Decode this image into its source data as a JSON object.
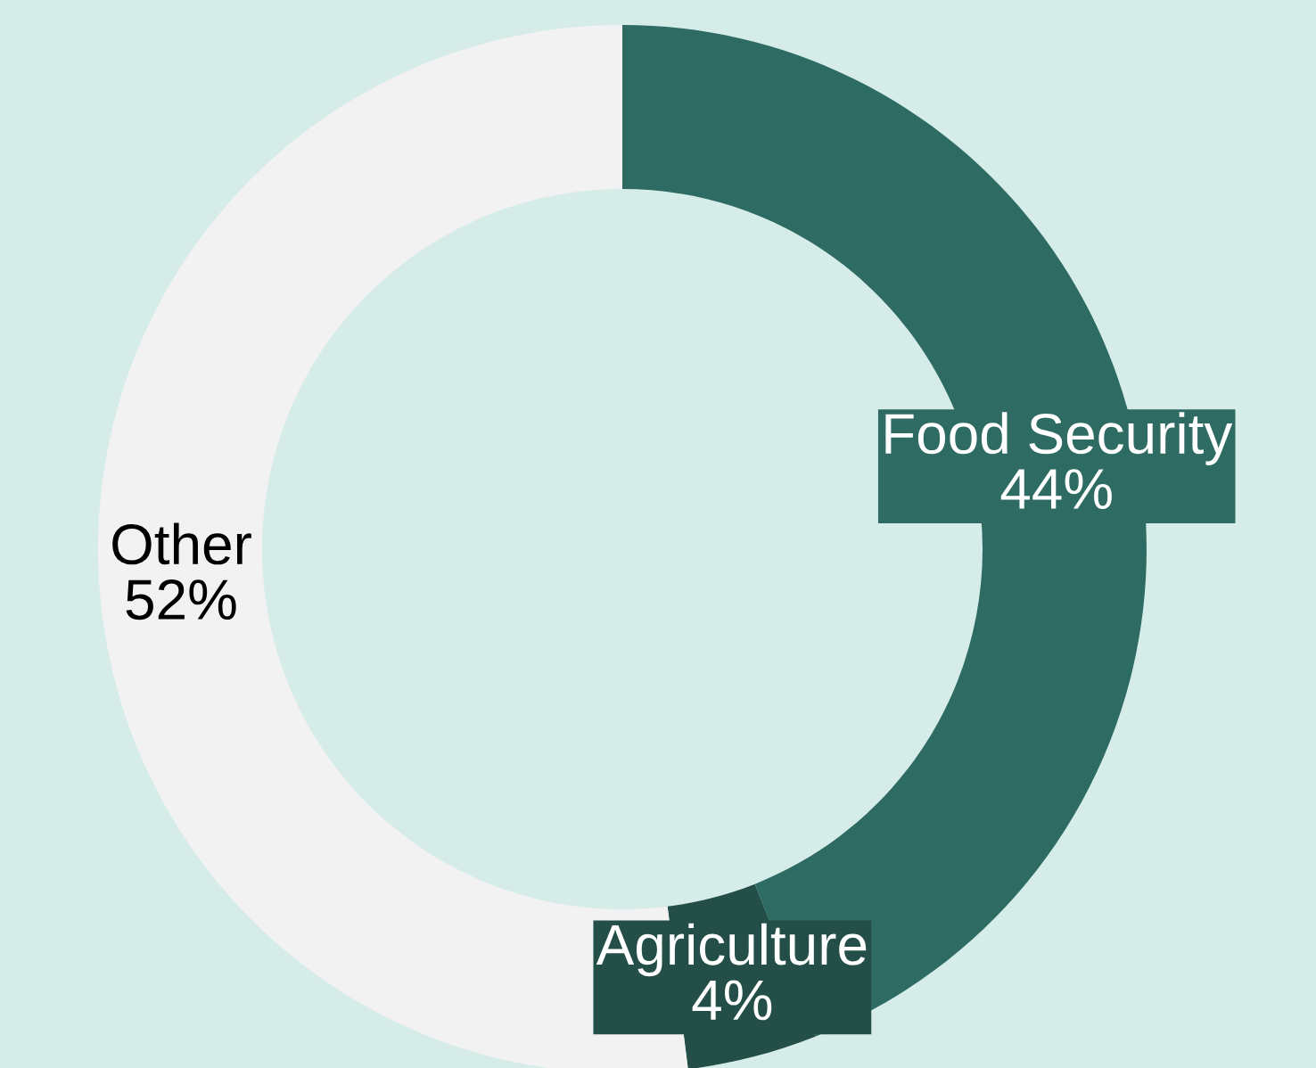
{
  "chart_data": {
    "type": "donut",
    "categories": [
      "Food Security",
      "Agriculture",
      "Other"
    ],
    "values": [
      44,
      4,
      52
    ],
    "colors": [
      "#2e6b63",
      "#234f48",
      "#f2f2f2"
    ],
    "value_labels": [
      "44%",
      "4%",
      "52%"
    ]
  }
}
